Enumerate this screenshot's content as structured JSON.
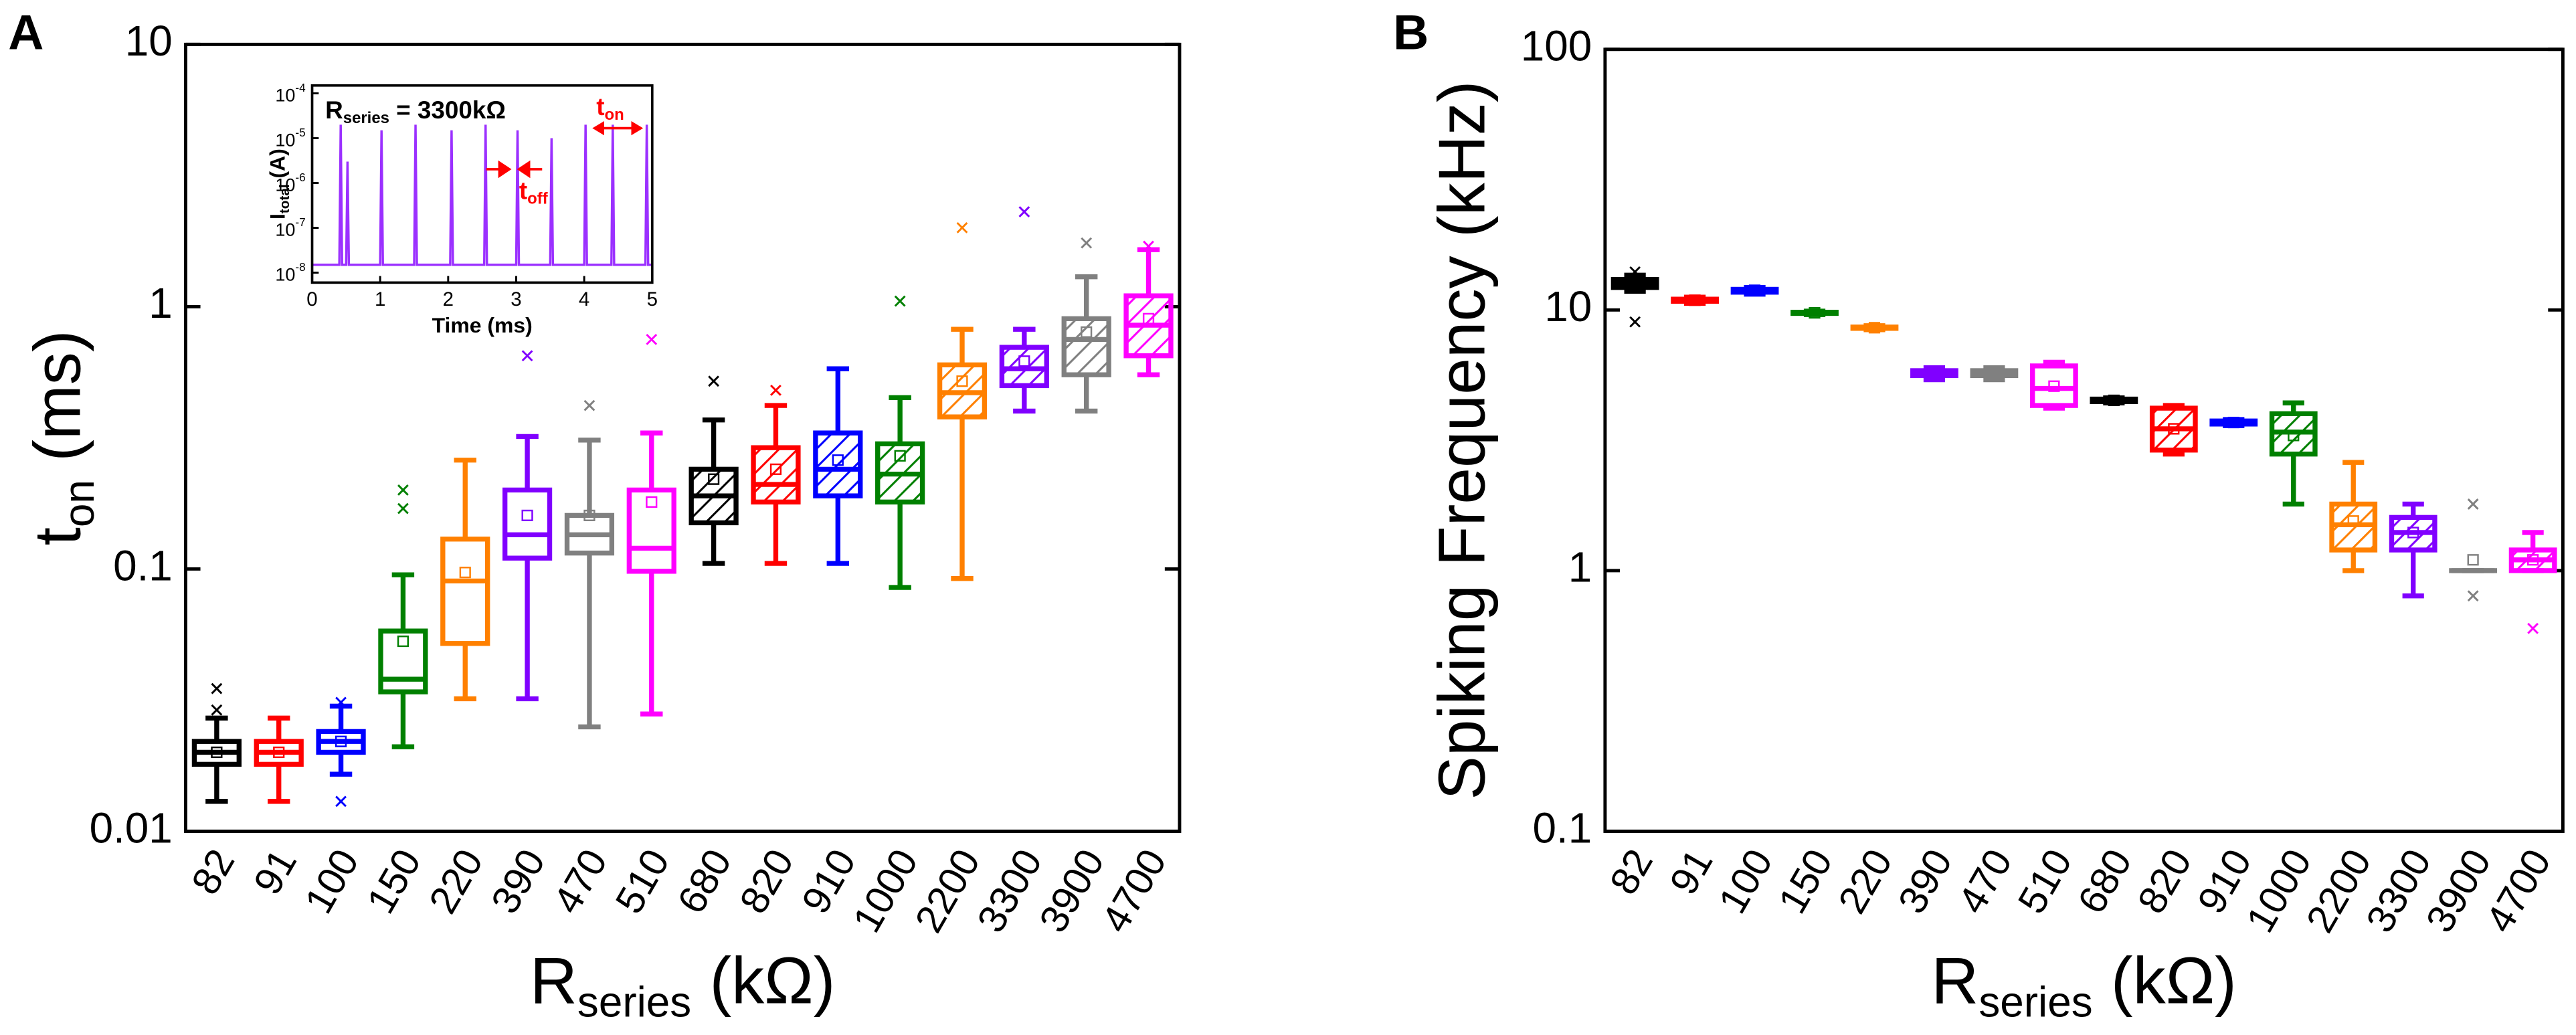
{
  "chart_data": [
    {
      "type": "box",
      "panel": "A",
      "y_label": {
        "main": "t",
        "sub": "on",
        "rest": " (ms)"
      },
      "x_label": {
        "main": "R",
        "sub": "series",
        "rest": " (kΩ)"
      },
      "log_y": true,
      "ylim": [
        0.01,
        10
      ],
      "yticks": [
        0.01,
        0.1,
        1,
        10
      ],
      "categories": [
        "82",
        "91",
        "100",
        "150",
        "220",
        "390",
        "470",
        "510",
        "680",
        "820",
        "910",
        "1000",
        "2200",
        "3300",
        "3900",
        "4700"
      ],
      "colors": [
        "#000000",
        "#ff0000",
        "#0000ff",
        "#008000",
        "#ff8000",
        "#8000ff",
        "#808080",
        "#ff00ff",
        "#000000",
        "#ff0000",
        "#0000ff",
        "#008000",
        "#ff8000",
        "#8000ff",
        "#808080",
        "#ff00ff"
      ],
      "hatched": [
        false,
        false,
        false,
        false,
        false,
        false,
        false,
        false,
        true,
        true,
        true,
        true,
        true,
        true,
        true,
        true
      ],
      "whisker_low": [
        0.013,
        0.013,
        0.0165,
        0.021,
        0.032,
        0.032,
        0.025,
        0.028,
        0.105,
        0.105,
        0.105,
        0.085,
        0.092,
        0.4,
        0.4,
        0.55
      ],
      "q1": [
        0.018,
        0.018,
        0.02,
        0.034,
        0.052,
        0.11,
        0.115,
        0.098,
        0.15,
        0.18,
        0.19,
        0.18,
        0.38,
        0.5,
        0.55,
        0.65
      ],
      "median": [
        0.02,
        0.02,
        0.022,
        0.038,
        0.09,
        0.135,
        0.135,
        0.12,
        0.19,
        0.21,
        0.24,
        0.23,
        0.47,
        0.58,
        0.75,
        0.85
      ],
      "q3": [
        0.022,
        0.022,
        0.024,
        0.058,
        0.13,
        0.2,
        0.16,
        0.2,
        0.24,
        0.29,
        0.33,
        0.3,
        0.6,
        0.7,
        0.9,
        1.1
      ],
      "whisker_high": [
        0.027,
        0.027,
        0.03,
        0.095,
        0.26,
        0.32,
        0.31,
        0.33,
        0.37,
        0.42,
        0.58,
        0.45,
        0.82,
        0.82,
        1.3,
        1.65
      ],
      "mean": [
        0.02,
        0.02,
        0.022,
        0.053,
        0.097,
        0.16,
        0.16,
        0.18,
        0.22,
        0.24,
        0.26,
        0.27,
        0.52,
        0.62,
        0.8,
        0.9
      ],
      "outliers": [
        [
          0.029,
          0.035
        ],
        [],
        [
          0.013,
          0.031
        ],
        [
          0.17,
          0.2
        ],
        [],
        [
          0.65
        ],
        [
          0.42
        ],
        [
          0.75
        ],
        [
          0.52
        ],
        [
          0.48
        ],
        [],
        [
          1.05
        ],
        [
          2.0
        ],
        [
          2.3
        ],
        [
          1.75
        ],
        [
          1.7
        ]
      ]
    },
    {
      "type": "box",
      "panel": "B",
      "y_label": {
        "main": "Spiking Frequency (kHz)",
        "sub": "",
        "rest": ""
      },
      "x_label": {
        "main": "R",
        "sub": "series",
        "rest": " (kΩ)"
      },
      "log_y": true,
      "ylim": [
        0.1,
        100
      ],
      "yticks": [
        0.1,
        1,
        10,
        100
      ],
      "categories": [
        "82",
        "91",
        "100",
        "150",
        "220",
        "390",
        "470",
        "510",
        "680",
        "820",
        "910",
        "1000",
        "2200",
        "3300",
        "3900",
        "4700"
      ],
      "colors": [
        "#000000",
        "#ff0000",
        "#0000ff",
        "#008000",
        "#ff8000",
        "#8000ff",
        "#808080",
        "#ff00ff",
        "#000000",
        "#ff0000",
        "#0000ff",
        "#008000",
        "#ff8000",
        "#8000ff",
        "#808080",
        "#ff00ff"
      ],
      "hatched": [
        false,
        false,
        false,
        false,
        false,
        false,
        false,
        false,
        false,
        true,
        false,
        true,
        true,
        true,
        false,
        true
      ],
      "whisker_low": [
        11.8,
        10.6,
        11.5,
        9.6,
        8.4,
        5.4,
        5.4,
        4.2,
        4.4,
        2.8,
        3.6,
        1.8,
        1.0,
        0.8,
        1.0,
        1.0
      ],
      "q1": [
        12.2,
        10.8,
        11.7,
        9.7,
        8.5,
        5.6,
        5.6,
        4.3,
        4.45,
        2.9,
        3.65,
        2.8,
        1.2,
        1.2,
        1.0,
        1.0
      ],
      "median": [
        12.6,
        10.9,
        11.9,
        9.75,
        8.55,
        5.7,
        5.7,
        5.0,
        4.5,
        3.5,
        3.7,
        3.4,
        1.5,
        1.4,
        1.0,
        1.1
      ],
      "q3": [
        13.1,
        11.0,
        12.0,
        9.8,
        8.6,
        5.85,
        5.85,
        6.1,
        4.55,
        4.2,
        3.75,
        4.0,
        1.8,
        1.6,
        1.0,
        1.2
      ],
      "whisker_high": [
        13.6,
        11.2,
        12.2,
        9.9,
        8.7,
        6.0,
        6.0,
        6.3,
        4.6,
        4.3,
        3.8,
        4.4,
        2.6,
        1.8,
        1.0,
        1.4
      ],
      "mean": [
        12.6,
        10.9,
        11.9,
        9.75,
        8.55,
        5.7,
        5.7,
        5.1,
        4.5,
        3.5,
        3.7,
        3.3,
        1.55,
        1.4,
        1.1,
        1.1
      ],
      "outliers": [
        [
          9,
          14
        ],
        [],
        [],
        [],
        [],
        [],
        [],
        [],
        [],
        [],
        [],
        [],
        [],
        [],
        [
          0.8,
          1.8
        ],
        [
          0.6
        ]
      ]
    },
    {
      "type": "line",
      "title": {
        "main": "R",
        "sub": "series",
        "rest": " = 3300kΩ"
      },
      "x_label": "Time (ms)",
      "y_label": {
        "main": "I",
        "sub": "total",
        "rest": " (A)"
      },
      "annotations": [
        {
          "main": "t",
          "sub": "on",
          "rest": ""
        },
        {
          "main": "t",
          "sub": "off",
          "rest": ""
        }
      ],
      "color": "#9b30ff",
      "log_y": true,
      "xlim": [
        0,
        5
      ],
      "xticks": [
        0,
        1,
        2,
        3,
        4,
        5
      ],
      "ylim": [
        6e-09,
        0.00015
      ],
      "yticks": [
        {
          "value": 1e-08,
          "label": "10",
          "exp": "-8"
        },
        {
          "value": 1e-07,
          "label": "10",
          "exp": "-7"
        },
        {
          "value": 1e-06,
          "label": "10",
          "exp": "-6"
        },
        {
          "value": 1e-05,
          "label": "10",
          "exp": "-5"
        },
        {
          "value": 0.0001,
          "label": "10",
          "exp": "-4"
        }
      ],
      "x": [
        0,
        0.4,
        0.42,
        0.44,
        0.5,
        0.52,
        0.54,
        1.0,
        1.02,
        1.04,
        1.5,
        1.52,
        1.54,
        2.03,
        2.05,
        2.07,
        2.53,
        2.55,
        2.57,
        3.0,
        3.02,
        3.04,
        3.5,
        3.52,
        3.54,
        4.0,
        4.02,
        4.04,
        4.4,
        4.42,
        4.44,
        4.9,
        4.92,
        4.94,
        5
      ],
      "values": [
        1.5e-08,
        1.5e-08,
        2e-05,
        1.5e-08,
        1.5e-08,
        3e-06,
        1.5e-08,
        1.5e-08,
        1.5e-05,
        1.5e-08,
        1.5e-08,
        2e-05,
        1.5e-08,
        1.5e-08,
        1.5e-05,
        1.5e-08,
        1.5e-08,
        2e-05,
        1.5e-08,
        1.5e-08,
        1.5e-05,
        1.5e-08,
        1.5e-08,
        1e-05,
        1.5e-08,
        1.5e-08,
        2e-05,
        1.5e-08,
        1.5e-08,
        2e-05,
        1.5e-08,
        1.5e-08,
        2e-05,
        1.5e-08,
        1.5e-08
      ]
    }
  ]
}
